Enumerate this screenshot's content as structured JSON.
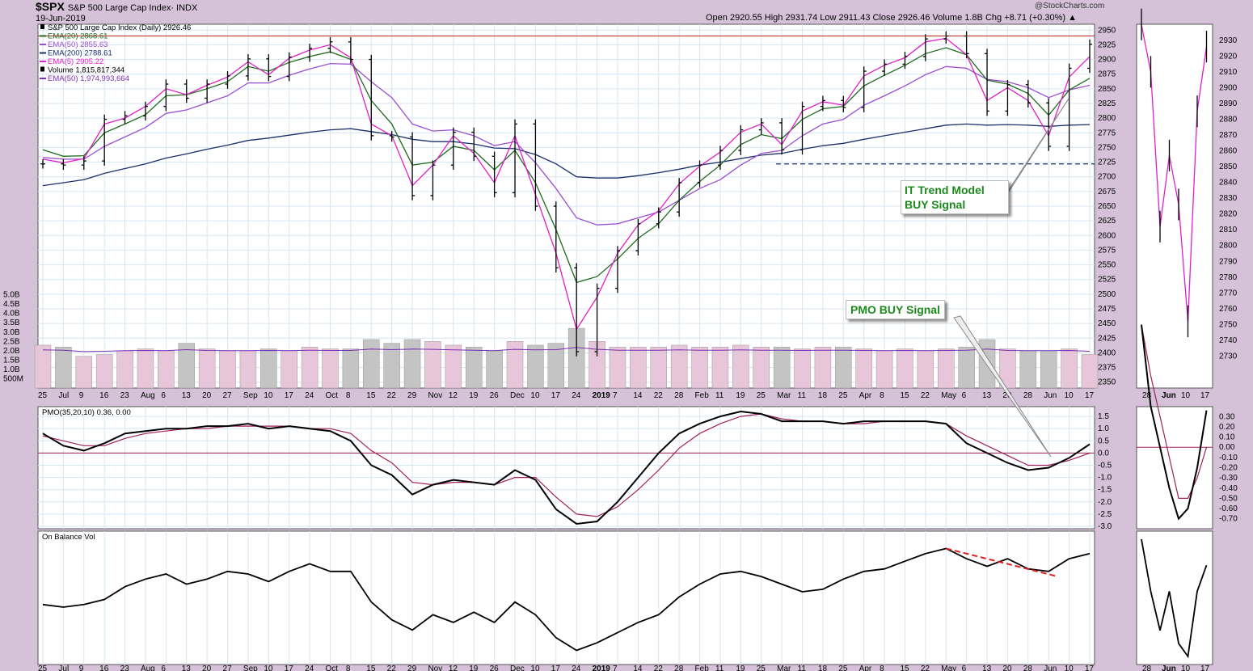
{
  "header": {
    "symbol": "$SPX",
    "symbol_desc": "S&P 500 Large Cap Index· INDX",
    "date": "19-Jun-2019",
    "copyright": "@StockCharts.com",
    "ohlc": "Open 2920.55  High 2931.74  Low 2911.43  Close 2926.46  Volume 1.8B  Chg +8.71 (+0.30%) ▲"
  },
  "legend": [
    {
      "text": "S&P 500 Large Cap Index (Daily) 2926.46",
      "color": "#000000",
      "marker": "bars"
    },
    {
      "text": "EMA(20) 2868.61",
      "color": "#1e6b1e",
      "marker": "line"
    },
    {
      "text": "EMA(50) 2855.63",
      "color": "#9a4fd0",
      "marker": "line"
    },
    {
      "text": "EMA(200) 2788.61",
      "color": "#1a2f6b",
      "marker": "line"
    },
    {
      "text": "EMA(5) 2905.22",
      "color": "#e020c8",
      "marker": "line"
    },
    {
      "text": "Volume 1,815,817,344",
      "color": "#000000",
      "marker": "vol"
    },
    {
      "text": "EMA(50) 1,974,993,664",
      "color": "#7a2fb0",
      "marker": "line"
    }
  ],
  "pmo_legend": "PMO(35,20,10) 0.36, 0.00",
  "obv_legend": "On Balance Vol",
  "callouts": {
    "it_trend": [
      "IT Trend Model",
      "BUY Signal"
    ],
    "pmo_buy": "PMO BUY Signal"
  },
  "colors": {
    "ema20": "#1e6b1e",
    "ema50": "#9a4fd0",
    "ema200": "#1a2f6b",
    "ema5": "#e020c8",
    "pmo": "#000000",
    "pmo_signal": "#a0205a",
    "resistance": "#c02020",
    "obv_trend": "#e02020"
  },
  "chart_data": [
    {
      "type": "line",
      "title": "S&P 500 Large Cap Index (Daily) 2926.46",
      "panel": "price",
      "x": [
        "25",
        "Jul",
        "9",
        "16",
        "23",
        "Aug",
        "6",
        "13",
        "20",
        "27",
        "Sep",
        "10",
        "17",
        "24",
        "Oct",
        "8",
        "15",
        "22",
        "29",
        "Nov",
        "12",
        "19",
        "26",
        "Dec",
        "10",
        "17",
        "24",
        "2019",
        "7",
        "14",
        "22",
        "28",
        "Feb",
        "11",
        "19",
        "25",
        "Mar",
        "11",
        "18",
        "25",
        "Apr",
        "8",
        "15",
        "22",
        "May",
        "6",
        "13",
        "20",
        "28",
        "Jun",
        "10",
        "17"
      ],
      "series": [
        {
          "name": "Close",
          "values": [
            2722,
            2720,
            2727,
            2798,
            2804,
            2820,
            2858,
            2834,
            2858,
            2872,
            2901,
            2871,
            2904,
            2919,
            2930,
            2900,
            2770,
            2768,
            2668,
            2720,
            2776,
            2735,
            2673,
            2790,
            2650,
            2545,
            2402,
            2510,
            2574,
            2620,
            2640,
            2690,
            2720,
            2745,
            2780,
            2792,
            2746,
            2820,
            2830,
            2818,
            2880,
            2892,
            2905,
            2935,
            2940,
            2910,
            2812,
            2857,
            2826,
            2752,
            2885,
            2926
          ]
        },
        {
          "name": "EMA(5)",
          "values": [
            2730,
            2724,
            2731,
            2790,
            2800,
            2820,
            2850,
            2840,
            2856,
            2870,
            2896,
            2874,
            2902,
            2916,
            2925,
            2903,
            2790,
            2770,
            2685,
            2720,
            2770,
            2740,
            2690,
            2770,
            2670,
            2570,
            2440,
            2495,
            2570,
            2618,
            2642,
            2688,
            2718,
            2742,
            2776,
            2790,
            2755,
            2812,
            2828,
            2822,
            2872,
            2890,
            2903,
            2930,
            2936,
            2908,
            2830,
            2852,
            2830,
            2770,
            2870,
            2905
          ]
        },
        {
          "name": "EMA(20)",
          "values": [
            2746,
            2735,
            2736,
            2775,
            2790,
            2806,
            2838,
            2840,
            2850,
            2862,
            2888,
            2880,
            2895,
            2905,
            2913,
            2900,
            2830,
            2790,
            2720,
            2725,
            2752,
            2745,
            2712,
            2745,
            2690,
            2610,
            2520,
            2530,
            2560,
            2595,
            2620,
            2660,
            2692,
            2720,
            2755,
            2772,
            2765,
            2798,
            2816,
            2820,
            2855,
            2873,
            2890,
            2910,
            2920,
            2908,
            2865,
            2858,
            2842,
            2805,
            2848,
            2868
          ]
        },
        {
          "name": "EMA(50)",
          "values": [
            2733,
            2730,
            2730,
            2752,
            2768,
            2784,
            2808,
            2814,
            2826,
            2838,
            2860,
            2860,
            2873,
            2884,
            2893,
            2892,
            2862,
            2835,
            2790,
            2778,
            2780,
            2770,
            2753,
            2760,
            2724,
            2680,
            2630,
            2618,
            2620,
            2630,
            2640,
            2660,
            2680,
            2695,
            2720,
            2740,
            2745,
            2770,
            2790,
            2798,
            2822,
            2838,
            2855,
            2874,
            2888,
            2885,
            2866,
            2862,
            2852,
            2835,
            2848,
            2856
          ]
        },
        {
          "name": "EMA(200)",
          "values": [
            2685,
            2690,
            2695,
            2706,
            2714,
            2722,
            2732,
            2739,
            2747,
            2754,
            2762,
            2766,
            2771,
            2776,
            2780,
            2782,
            2777,
            2772,
            2764,
            2760,
            2760,
            2756,
            2749,
            2748,
            2738,
            2722,
            2700,
            2698,
            2698,
            2702,
            2707,
            2713,
            2720,
            2725,
            2731,
            2737,
            2740,
            2747,
            2753,
            2757,
            2764,
            2770,
            2776,
            2782,
            2788,
            2790,
            2788,
            2789,
            2788,
            2786,
            2788,
            2789
          ]
        }
      ],
      "resistance_level": 2940,
      "support_level": 2722,
      "ylim": [
        2340,
        2960
      ],
      "yticks": [
        2350,
        2375,
        2400,
        2425,
        2450,
        2475,
        2500,
        2525,
        2550,
        2575,
        2600,
        2625,
        2650,
        2675,
        2700,
        2725,
        2750,
        2775,
        2800,
        2825,
        2850,
        2875,
        2900,
        2925,
        2950
      ],
      "volume": {
        "values": [
          2.3,
          2.2,
          1.7,
          1.8,
          2.0,
          2.1,
          2.0,
          2.4,
          2.1,
          2.0,
          2.0,
          2.1,
          2.0,
          2.2,
          2.1,
          2.1,
          2.6,
          2.4,
          2.6,
          2.5,
          2.3,
          2.2,
          2.0,
          2.5,
          2.3,
          2.4,
          3.2,
          2.5,
          2.2,
          2.2,
          2.2,
          2.3,
          2.2,
          2.2,
          2.3,
          2.2,
          2.2,
          2.1,
          2.2,
          2.2,
          2.1,
          2.0,
          2.1,
          2.0,
          2.1,
          2.2,
          2.6,
          2.1,
          2.0,
          2.0,
          2.1,
          1.8
        ],
        "yticks": [
          "500M",
          "1.0B",
          "1.5B",
          "2.0B",
          "2.5B",
          "3.0B",
          "3.5B",
          "4.0B",
          "4.5B",
          "5.0B"
        ]
      }
    },
    {
      "type": "line",
      "panel": "pmo",
      "title": "PMO(35,20,10) 0.36, 0.00",
      "x": [
        "25",
        "Jul",
        "9",
        "16",
        "23",
        "Aug",
        "6",
        "13",
        "20",
        "27",
        "Sep",
        "10",
        "17",
        "24",
        "Oct",
        "8",
        "15",
        "22",
        "29",
        "Nov",
        "12",
        "19",
        "26",
        "Dec",
        "10",
        "17",
        "24",
        "2019",
        "7",
        "14",
        "22",
        "28",
        "Feb",
        "11",
        "19",
        "25",
        "Mar",
        "11",
        "18",
        "25",
        "Apr",
        "8",
        "15",
        "22",
        "May",
        "6",
        "13",
        "20",
        "28",
        "Jun",
        "10",
        "17"
      ],
      "series": [
        {
          "name": "PMO",
          "values": [
            0.8,
            0.3,
            0.1,
            0.4,
            0.8,
            0.9,
            1.0,
            1.0,
            1.1,
            1.1,
            1.2,
            1.0,
            1.1,
            1.0,
            0.9,
            0.5,
            -0.5,
            -0.9,
            -1.7,
            -1.3,
            -1.1,
            -1.2,
            -1.3,
            -0.7,
            -1.1,
            -2.3,
            -2.9,
            -2.8,
            -2.0,
            -1.0,
            0.0,
            0.8,
            1.2,
            1.5,
            1.7,
            1.6,
            1.3,
            1.3,
            1.3,
            1.2,
            1.3,
            1.3,
            1.3,
            1.3,
            1.2,
            0.4,
            0.0,
            -0.4,
            -0.7,
            -0.6,
            -0.2,
            0.36
          ]
        },
        {
          "name": "Signal",
          "values": [
            0.7,
            0.5,
            0.3,
            0.3,
            0.6,
            0.8,
            0.9,
            1.0,
            1.0,
            1.1,
            1.1,
            1.1,
            1.1,
            1.0,
            1.0,
            0.8,
            0.1,
            -0.4,
            -1.2,
            -1.3,
            -1.2,
            -1.2,
            -1.3,
            -1.0,
            -1.0,
            -1.8,
            -2.5,
            -2.6,
            -2.2,
            -1.5,
            -0.7,
            0.2,
            0.8,
            1.2,
            1.5,
            1.6,
            1.4,
            1.3,
            1.3,
            1.2,
            1.2,
            1.3,
            1.3,
            1.3,
            1.2,
            0.7,
            0.3,
            -0.1,
            -0.5,
            -0.5,
            -0.3,
            0.0
          ]
        }
      ],
      "ylim": [
        -3.0,
        1.8
      ],
      "yticks": [
        -3.0,
        -2.5,
        -2.0,
        -1.5,
        -1.0,
        -0.5,
        0.0,
        0.5,
        1.0,
        1.5
      ]
    },
    {
      "type": "line",
      "panel": "obv",
      "title": "On Balance Vol",
      "x": [
        "25",
        "Jul",
        "9",
        "16",
        "23",
        "Aug",
        "6",
        "13",
        "20",
        "27",
        "Sep",
        "10",
        "17",
        "24",
        "Oct",
        "8",
        "15",
        "22",
        "29",
        "Nov",
        "12",
        "19",
        "26",
        "Dec",
        "10",
        "17",
        "24",
        "2019",
        "7",
        "14",
        "22",
        "28",
        "Feb",
        "11",
        "19",
        "25",
        "Mar",
        "11",
        "18",
        "25",
        "Apr",
        "8",
        "15",
        "22",
        "May",
        "6",
        "13",
        "20",
        "28",
        "Jun",
        "10",
        "17"
      ],
      "series": [
        {
          "name": "OBV",
          "values": [
            -16,
            -17,
            -16,
            -14,
            -9,
            -6,
            -4,
            -8,
            -6,
            -3,
            -4,
            -7,
            -3,
            0,
            -3,
            -3,
            -15,
            -22,
            -26,
            -20,
            -23,
            -19,
            -23,
            -15,
            -20,
            -29,
            -34,
            -31,
            -27,
            -23,
            -20,
            -13,
            -8,
            -4,
            -3,
            -5,
            -8,
            -11,
            -10,
            -6,
            -3,
            -2,
            1,
            4,
            6,
            2,
            -1,
            2,
            -2,
            -3,
            2,
            4
          ]
        }
      ],
      "trendline": "declining from May peak to June low"
    }
  ]
}
